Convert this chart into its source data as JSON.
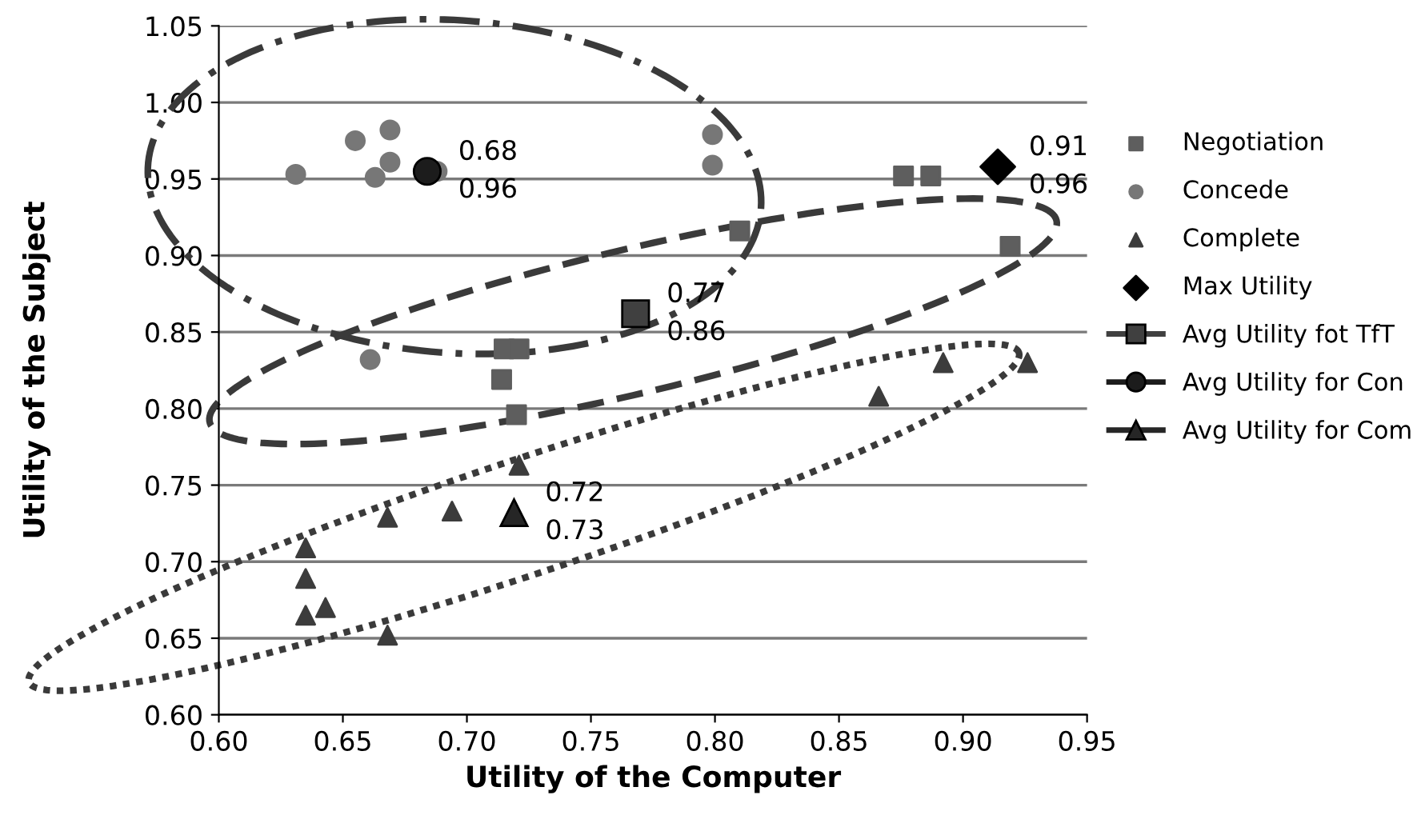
{
  "chart_data": {
    "type": "scatter",
    "xlabel": "Utility of the Computer",
    "ylabel": "Utility of the Subject",
    "xlim": [
      0.6,
      0.95
    ],
    "ylim": [
      0.6,
      1.05
    ],
    "xticks": [
      {
        "value": 0.6,
        "label": "0.60"
      },
      {
        "value": 0.65,
        "label": "0.65"
      },
      {
        "value": 0.7,
        "label": "0.70"
      },
      {
        "value": 0.75,
        "label": "0.75"
      },
      {
        "value": 0.8,
        "label": "0.80"
      },
      {
        "value": 0.85,
        "label": "0.85"
      },
      {
        "value": 0.9,
        "label": "0.90"
      },
      {
        "value": 0.95,
        "label": "0.95"
      }
    ],
    "yticks": [
      {
        "value": 0.6,
        "label": "0.60"
      },
      {
        "value": 0.65,
        "label": "0.65"
      },
      {
        "value": 0.7,
        "label": "0.70"
      },
      {
        "value": 0.75,
        "label": "0.75"
      },
      {
        "value": 0.8,
        "label": "0.80"
      },
      {
        "value": 0.85,
        "label": "0.85"
      },
      {
        "value": 0.9,
        "label": "0.90"
      },
      {
        "value": 0.95,
        "label": "0.95"
      },
      {
        "value": 1.0,
        "label": "1.00"
      },
      {
        "value": 1.05,
        "label": "1.05"
      }
    ],
    "grid": "y",
    "legend": "right",
    "series": [
      {
        "name": "Negotiation",
        "color": "#5e5e5e",
        "marker": "square",
        "x": [
          0.81,
          0.715,
          0.721,
          0.714,
          0.72,
          0.876,
          0.887,
          0.919
        ],
        "values": [
          0.916,
          0.839,
          0.839,
          0.819,
          0.796,
          0.952,
          0.952,
          0.906
        ]
      },
      {
        "name": "Concede",
        "color": "#777777",
        "marker": "circle",
        "x": [
          0.631,
          0.655,
          0.669,
          0.669,
          0.663,
          0.688,
          0.799,
          0.799,
          0.661
        ],
        "values": [
          0.953,
          0.975,
          0.982,
          0.961,
          0.951,
          0.955,
          0.979,
          0.959,
          0.832
        ]
      },
      {
        "name": "Complete",
        "color": "#3c3c3c",
        "marker": "triangle",
        "x": [
          0.635,
          0.635,
          0.635,
          0.643,
          0.668,
          0.694,
          0.721,
          0.668,
          0.866,
          0.892,
          0.926
        ],
        "values": [
          0.709,
          0.689,
          0.665,
          0.67,
          0.729,
          0.733,
          0.763,
          0.652,
          0.808,
          0.83,
          0.83
        ]
      },
      {
        "name": "Max Utility",
        "color": "#000000",
        "marker": "diamond",
        "x": [
          0.914
        ],
        "values": [
          0.958
        ]
      },
      {
        "name": "Avg Utility fot TfT",
        "type": "line",
        "color": "#404040",
        "marker": "square",
        "x": [
          0.768
        ],
        "values": [
          0.862
        ]
      },
      {
        "name": "Avg Utility for Con",
        "type": "line",
        "color": "#1c1c1c",
        "marker": "circle",
        "x": [
          0.684
        ],
        "values": [
          0.955
        ]
      },
      {
        "name": "Avg Utility for Com",
        "type": "line",
        "color": "#262626",
        "marker": "triangle",
        "x": [
          0.719
        ],
        "values": [
          0.732
        ]
      }
    ],
    "annotations": [
      {
        "text": "0.68\n0.96",
        "x": 0.684,
        "y": 0.955
      },
      {
        "text": "0.77\n0.86",
        "x": 0.768,
        "y": 0.862
      },
      {
        "text": "0.72\n0.73",
        "x": 0.719,
        "y": 0.732
      },
      {
        "text": "0.91\n0.96",
        "x": 0.914,
        "y": 0.958
      }
    ]
  }
}
